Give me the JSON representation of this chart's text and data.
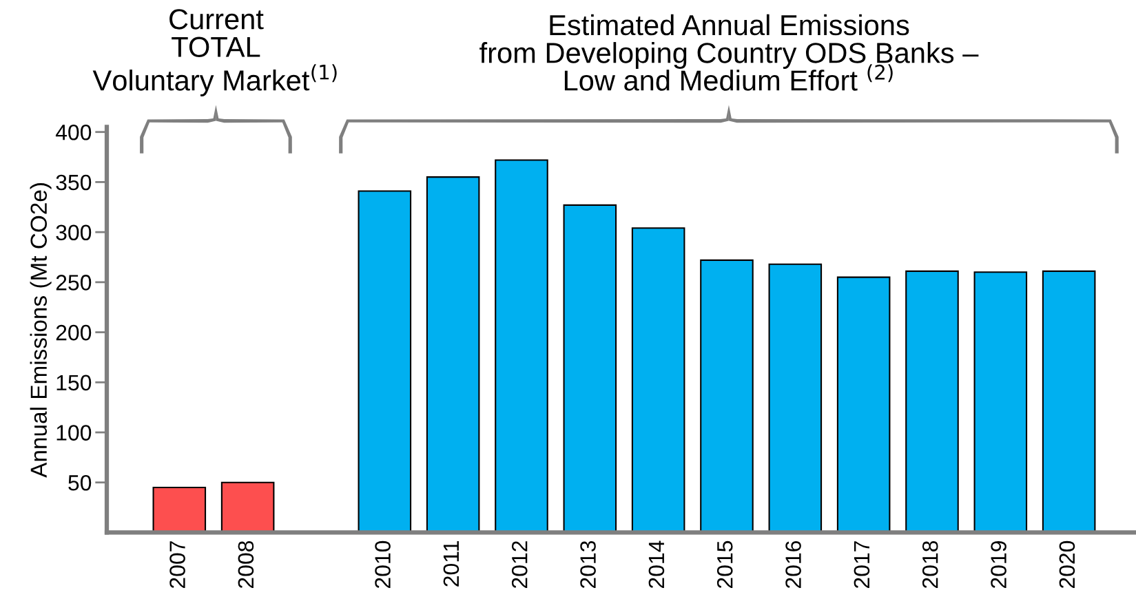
{
  "chart_data": {
    "type": "bar",
    "categories": [
      "2007",
      "2008",
      null,
      "2010",
      "2011",
      "2012",
      "2013",
      "2014",
      "2015",
      "2016",
      "2017",
      "2018",
      "2019",
      "2020"
    ],
    "values": [
      45,
      50,
      null,
      341,
      355,
      372,
      327,
      304,
      272,
      268,
      255,
      261,
      260,
      261
    ],
    "colors": [
      "#fd4f4f",
      "#fd4f4f",
      null,
      "#00b0f0",
      "#00b0f0",
      "#00b0f0",
      "#00b0f0",
      "#00b0f0",
      "#00b0f0",
      "#00b0f0",
      "#00b0f0",
      "#00b0f0",
      "#00b0f0",
      "#00b0f0"
    ],
    "ylabel": "Annual Emissions (Mt CO2e)",
    "ylim": [
      0,
      405
    ],
    "yticks": [
      50,
      100,
      150,
      200,
      250,
      300,
      350,
      400
    ],
    "grid": false,
    "annotations": [
      "Current\nTOTAL\nVoluntary Market$^{(1)}$",
      "Estimated Annual Emissions\nfrom Developing Country ODS Banks –\nLow and Medium Effort $^{(2)}$"
    ]
  }
}
